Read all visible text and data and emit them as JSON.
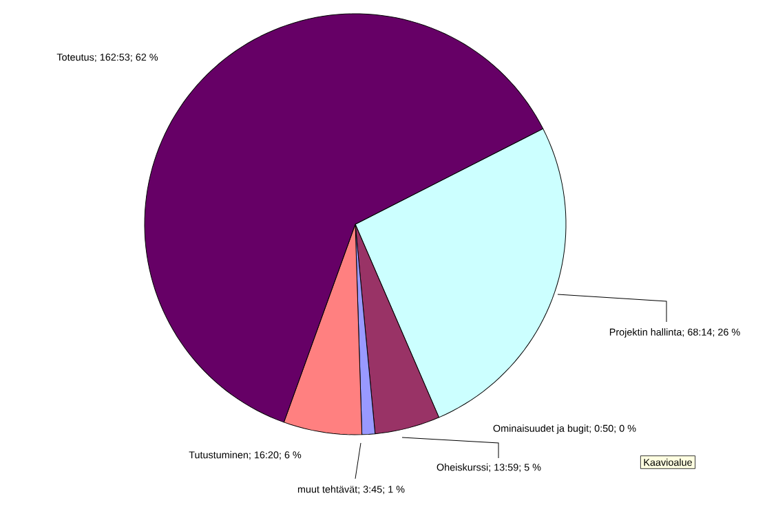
{
  "chart_data": {
    "type": "pie",
    "categories": [
      "Projektin hallinta; 68:14; 26 %",
      "Ominaisuudet ja bugit; 0:50; 0 %",
      "Oheiskurssi; 13:59; 5 %",
      "muut tehtävät; 3:45; 1 %",
      "Tutustuminen; 16:20; 6 %",
      "Toteutus; 162:53; 62 %"
    ],
    "values": [
      26,
      0,
      5,
      1,
      6,
      62
    ],
    "colors": [
      "#ccffff",
      "#ffffcc",
      "#993366",
      "#9999ff",
      "#ff8080",
      "#660066"
    ],
    "annotations": [
      "Kaavioalue"
    ]
  }
}
